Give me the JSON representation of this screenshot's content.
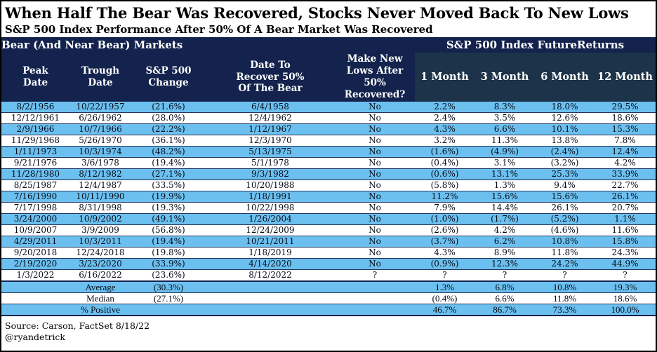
{
  "title": "When Half The Bear Was Recovered, Stocks Never Moved Back To New Lows",
  "subtitle": "S&P 500 Index Performance After 50% Of A Bear Market Was Recovered",
  "group_headers": {
    "left": "Bear (And Near Bear) Markets",
    "right": "S&P 500 Index FutureReturns"
  },
  "chart_data": {
    "type": "table",
    "title": "When Half The Bear Was Recovered, Stocks Never Moved Back To New Lows",
    "subtitle": "S&P 500 Index Performance After 50% Of A Bear Market Was Recovered",
    "columns": [
      "Peak\nDate",
      "Trough\nDate",
      "S&P 500\nChange",
      "Date To\nRecover 50%\nOf The Bear",
      "Make New\nLows After 50%\nRecovered?",
      "1 Month",
      "3 Month",
      "6 Month",
      "12 Month"
    ],
    "rows": [
      [
        "8/2/1956",
        "10/22/1957",
        "(21.6%)",
        "6/4/1958",
        "No",
        "2.2%",
        "8.3%",
        "18.0%",
        "29.5%"
      ],
      [
        "12/12/1961",
        "6/26/1962",
        "(28.0%)",
        "12/4/1962",
        "No",
        "2.4%",
        "3.5%",
        "12.6%",
        "18.6%"
      ],
      [
        "2/9/1966",
        "10/7/1966",
        "(22.2%)",
        "1/12/1967",
        "No",
        "4.3%",
        "6.6%",
        "10.1%",
        "15.3%"
      ],
      [
        "11/29/1968",
        "5/26/1970",
        "(36.1%)",
        "12/3/1970",
        "No",
        "3.2%",
        "11.3%",
        "13.8%",
        "7.8%"
      ],
      [
        "1/11/1973",
        "10/3/1974",
        "(48.2%)",
        "5/13/1975",
        "No",
        "(1.6%)",
        "(4.9%)",
        "(2.4%)",
        "12.4%"
      ],
      [
        "9/21/1976",
        "3/6/1978",
        "(19.4%)",
        "5/1/1978",
        "No",
        "(0.4%)",
        "3.1%",
        "(3.2%)",
        "4.2%"
      ],
      [
        "11/28/1980",
        "8/12/1982",
        "(27.1%)",
        "9/3/1982",
        "No",
        "(0.6%)",
        "13.1%",
        "25.3%",
        "33.9%"
      ],
      [
        "8/25/1987",
        "12/4/1987",
        "(33.5%)",
        "10/20/1988",
        "No",
        "(5.8%)",
        "1.3%",
        "9.4%",
        "22.7%"
      ],
      [
        "7/16/1990",
        "10/11/1990",
        "(19.9%)",
        "1/18/1991",
        "No",
        "11.2%",
        "15.6%",
        "15.6%",
        "26.1%"
      ],
      [
        "7/17/1998",
        "8/31/1998",
        "(19.3%)",
        "10/22/1998",
        "No",
        "7.9%",
        "14.4%",
        "26.1%",
        "20.7%"
      ],
      [
        "3/24/2000",
        "10/9/2002",
        "(49.1%)",
        "1/26/2004",
        "No",
        "(1.0%)",
        "(1.7%)",
        "(5.2%)",
        "1.1%"
      ],
      [
        "10/9/2007",
        "3/9/2009",
        "(56.8%)",
        "12/24/2009",
        "No",
        "(2.6%)",
        "4.2%",
        "(4.6%)",
        "11.6%"
      ],
      [
        "4/29/2011",
        "10/3/2011",
        "(19.4%)",
        "10/21/2011",
        "No",
        "(3.7%)",
        "6.2%",
        "10.8%",
        "15.8%"
      ],
      [
        "9/20/2018",
        "12/24/2018",
        "(19.8%)",
        "1/18/2019",
        "No",
        "4.3%",
        "8.9%",
        "11.8%",
        "24.3%"
      ],
      [
        "2/19/2020",
        "3/23/2020",
        "(33.9%)",
        "4/14/2020",
        "No",
        "(0.9%)",
        "12.3%",
        "24.2%",
        "44.9%"
      ],
      [
        "1/3/2022",
        "6/16/2022",
        "(23.6%)",
        "8/12/2022",
        "?",
        "?",
        "?",
        "?",
        "?"
      ]
    ],
    "summary_rows": [
      [
        "",
        "Average",
        "(30.3%)",
        "",
        "",
        "1.3%",
        "6.8%",
        "10.8%",
        "19.3%"
      ],
      [
        "",
        "Median",
        "(27.1%)",
        "",
        "",
        "(0.4%)",
        "6.6%",
        "11.8%",
        "18.6%"
      ],
      [
        "",
        "% Positive",
        "",
        "",
        "",
        "46.7%",
        "86.7%",
        "73.3%",
        "100.0%"
      ]
    ]
  },
  "footer": {
    "source": "Source: Carson, FactSet 8/18/22",
    "handle": "@ryandetrick"
  },
  "colors": {
    "header_navy": "#14234d",
    "returns_panel": "#1c3349",
    "row_stripe_blue": "#6cc0ef",
    "row_stripe_white": "#ffffff",
    "header_text": "#ffffff",
    "body_text": "#050b18"
  }
}
